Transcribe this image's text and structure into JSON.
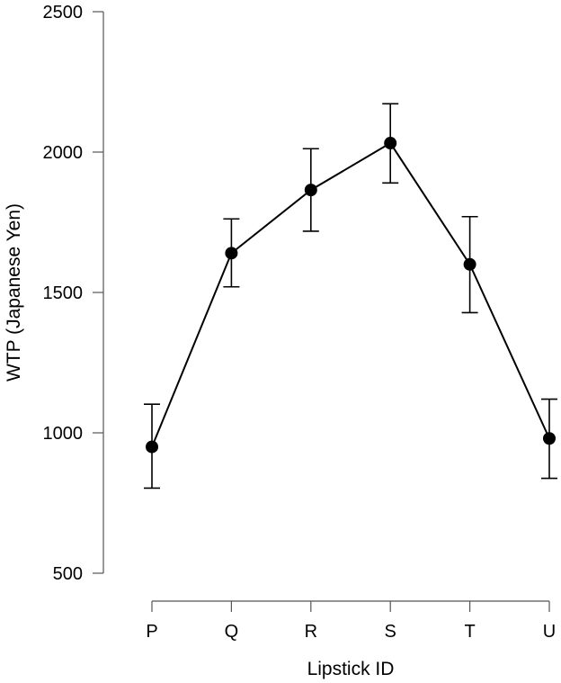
{
  "chart_data": {
    "type": "line",
    "title": "",
    "xlabel": "Lipstick ID",
    "ylabel": "WTP (Japanese Yen)",
    "categories": [
      "P",
      "Q",
      "R",
      "S",
      "T",
      "U"
    ],
    "series": [
      {
        "values": [
          950,
          1640,
          1865,
          2032,
          1600,
          980
        ],
        "error_low": [
          803,
          1520,
          1718,
          1890,
          1428,
          838
        ],
        "error_high": [
          1102,
          1762,
          2012,
          2172,
          1770,
          1120
        ]
      }
    ],
    "ylim": [
      500,
      2500
    ],
    "yticks": [
      500,
      1000,
      1500,
      2000,
      2500
    ],
    "ytick_labels": [
      "500",
      "1000",
      "1500",
      "2000",
      "2500"
    ],
    "grid": false,
    "colors": {
      "line": "#000000",
      "marker": "#000000"
    }
  }
}
